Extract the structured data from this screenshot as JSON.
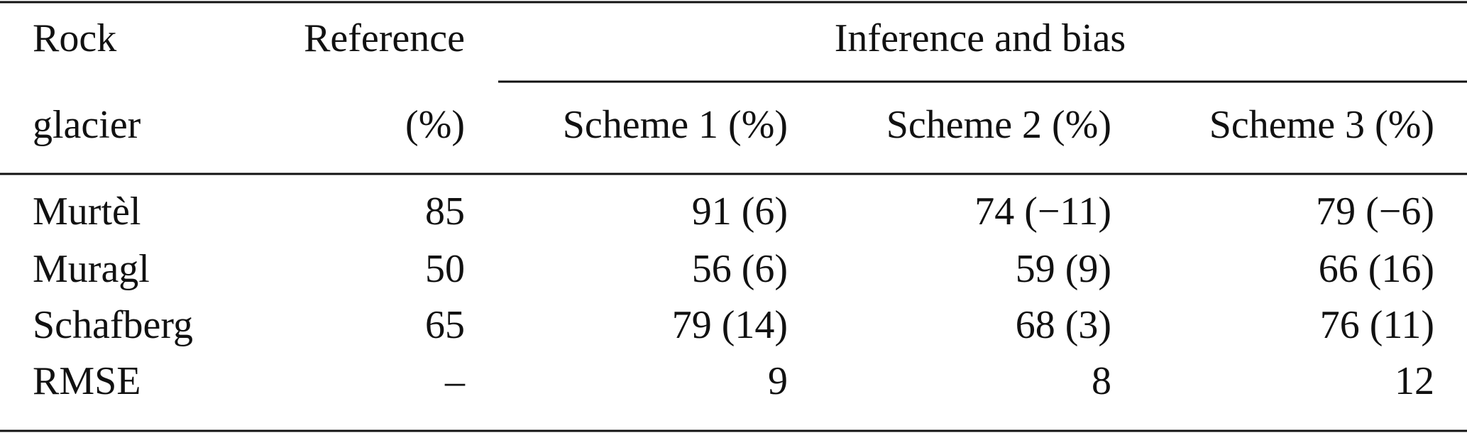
{
  "table": {
    "header": [
      [
        "Rock",
        "Reference",
        "Inference and bias"
      ],
      [
        "glacier",
        "(%)",
        "Scheme 1 (%)",
        "Scheme 2 (%)",
        "Scheme 3 (%)"
      ]
    ],
    "rows": [
      [
        "Murtèl",
        "85",
        "91 (6)",
        "74 (−11)",
        "79 (−6)"
      ],
      [
        "Muragl",
        "50",
        "56 (6)",
        "59 (9)",
        "66 (16)"
      ],
      [
        "Schafberg",
        "65",
        "79 (14)",
        "68 (3)",
        "76 (11)"
      ],
      [
        "RMSE",
        "–",
        "9",
        "8",
        "12"
      ]
    ]
  }
}
